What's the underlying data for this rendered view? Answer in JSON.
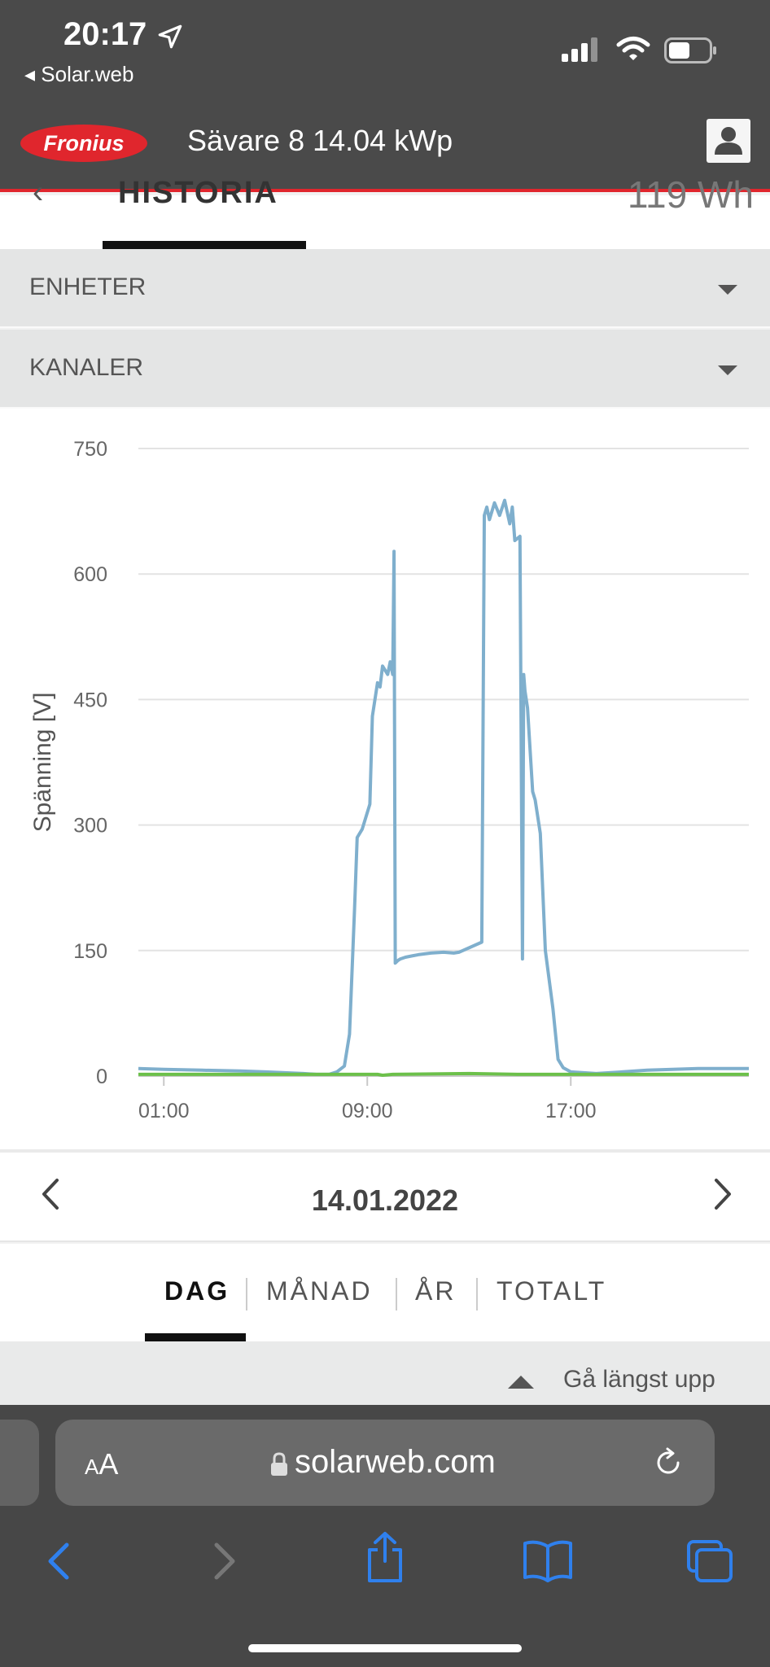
{
  "status_bar": {
    "time": "20:17",
    "back_app": "Solar.web",
    "battery_level": 0.5
  },
  "header": {
    "logo_text": "Fronius",
    "site_title": "Sävare 8 14.04 kWp"
  },
  "tab_strip": {
    "active_tab": "HISTORIA",
    "clipped_value": "119 Wh"
  },
  "accordions": [
    {
      "label": "ENHETER"
    },
    {
      "label": "KANALER"
    }
  ],
  "chart_data": {
    "type": "line",
    "ylabel": "Spänning [V]",
    "ylim": [
      0,
      750
    ],
    "yticks": [
      "750",
      "600",
      "450",
      "300",
      "150",
      "0"
    ],
    "xlim": [
      0,
      24
    ],
    "xticks": [
      "01:00",
      "09:00",
      "17:00"
    ],
    "grid": true,
    "colors": {
      "series1": "#7fafcd",
      "series2": "#6cc04a"
    },
    "series": [
      {
        "x": [
          0,
          1,
          2.5,
          4,
          5,
          6.5,
          7,
          7.5,
          7.8,
          8.1,
          8.3,
          8.5,
          8.6,
          8.8,
          9.1,
          9.2,
          9.4,
          9.5,
          9.6,
          9.8,
          9.9,
          10,
          10.05,
          10.1,
          10.2,
          10.3,
          10.5,
          11,
          11.5,
          12,
          12.4,
          12.6,
          13.5,
          13.6,
          13.7,
          13.8,
          14,
          14.2,
          14.4,
          14.6,
          14.7,
          14.8,
          15,
          15.1,
          15.15,
          15.2,
          15.3,
          15.5,
          15.6,
          15.8,
          16,
          16.3,
          16.5,
          16.7,
          17,
          18,
          19,
          20,
          21,
          22,
          23,
          24
        ],
        "y": [
          9,
          8,
          7,
          6,
          5,
          3,
          2,
          2,
          5,
          12,
          50,
          200,
          285,
          295,
          325,
          430,
          470,
          465,
          490,
          480,
          495,
          480,
          627,
          135,
          138,
          140,
          142,
          145,
          147,
          148,
          147,
          148,
          160,
          670,
          680,
          665,
          685,
          670,
          688,
          660,
          680,
          640,
          645,
          140,
          480,
          460,
          440,
          340,
          330,
          290,
          150,
          80,
          20,
          10,
          5,
          3,
          5,
          7,
          8,
          9,
          9,
          9
        ]
      },
      {
        "x": [
          0,
          4,
          8,
          9.4,
          9.6,
          10,
          13,
          15,
          17,
          20,
          24
        ],
        "y": [
          2,
          2,
          2,
          2,
          1,
          2,
          3,
          2,
          2,
          2,
          2
        ]
      }
    ]
  },
  "date_nav": {
    "date": "14.01.2022"
  },
  "period_tabs": [
    {
      "label": "DAG",
      "active": true
    },
    {
      "label": "MÅNAD",
      "active": false
    },
    {
      "label": "ÅR",
      "active": false
    },
    {
      "label": "TOTALT",
      "active": false
    }
  ],
  "go_top": {
    "label": "Gå längst upp"
  },
  "browser": {
    "aa_label": "AA",
    "url": "solarweb.com"
  }
}
